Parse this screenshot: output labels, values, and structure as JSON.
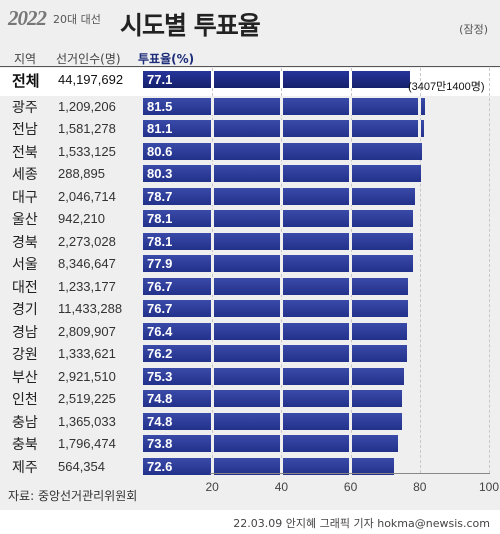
{
  "header": {
    "logo": "2022",
    "subtitle": "20대 대선",
    "title": "시도별 투표율",
    "note": "(잠정)"
  },
  "columns": {
    "region": "지역",
    "voters": "선거인수(명)",
    "turnout": "투표율(%)"
  },
  "chart_data": {
    "type": "bar",
    "orientation": "horizontal",
    "title": "시도별 투표율",
    "xlim": [
      0,
      100
    ],
    "xticks": [
      20,
      40,
      60,
      80,
      100
    ],
    "categories": [
      "전체",
      "광주",
      "전남",
      "전북",
      "세종",
      "대구",
      "울산",
      "경북",
      "서울",
      "대전",
      "경기",
      "경남",
      "강원",
      "부산",
      "인천",
      "충남",
      "충북",
      "제주"
    ],
    "voters": [
      "44,197,692",
      "1,209,206",
      "1,581,278",
      "1,533,125",
      "288,895",
      "2,046,714",
      "942,210",
      "2,273,028",
      "8,346,647",
      "1,233,177",
      "11,433,288",
      "2,809,907",
      "1,333,621",
      "2,921,510",
      "2,519,225",
      "1,365,033",
      "1,796,474",
      "564,354"
    ],
    "values": [
      77.1,
      81.5,
      81.1,
      80.6,
      80.3,
      78.7,
      78.1,
      78.1,
      77.9,
      76.7,
      76.7,
      76.4,
      76.2,
      75.3,
      74.8,
      74.8,
      73.8,
      72.6
    ],
    "value_labels": [
      "77.1",
      "81.5",
      "81.1",
      "80.6",
      "80.3",
      "78.7",
      "78.1",
      "78.1",
      "77.9",
      "76.7",
      "76.7",
      "76.4",
      "76.2",
      "75.3",
      "74.8",
      "74.8",
      "73.8",
      "72.6"
    ],
    "annotation": "(3407만1400명)",
    "bar_color": "#2a388f"
  },
  "footer": {
    "source": "자료: 중앙선거관리위원회",
    "credit": "22.03.09 안지혜 그래픽 기자 hokma@newsis.com"
  }
}
